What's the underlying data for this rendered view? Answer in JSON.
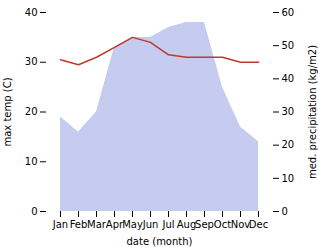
{
  "chart_data": {
    "type": "line",
    "xlabel": "date (month)",
    "ylabel": "max temp (C)",
    "y2label": "med. precipitation (kg/m2)",
    "categories": [
      "Jan",
      "Feb",
      "Mar",
      "Apr",
      "May",
      "Jun",
      "Jul",
      "Aug",
      "Sep",
      "Oct",
      "Nov",
      "Dec"
    ],
    "series": [
      {
        "type": "area",
        "color": "#c5ccf0",
        "values": [
          19,
          16,
          20,
          33,
          35,
          35,
          37,
          38,
          38,
          25,
          17,
          14
        ]
      },
      {
        "type": "line",
        "color": "#c0392b",
        "values": [
          30.5,
          29.5,
          31.0,
          33.0,
          35.0,
          34.0,
          31.5,
          31.0,
          31.0,
          31.0,
          30.0,
          30.0
        ]
      }
    ],
    "ylim": [
      0,
      40
    ],
    "yticks": [
      0,
      10,
      20,
      30,
      40
    ],
    "y2lim": [
      0,
      60
    ],
    "y2ticks": [
      0,
      10,
      20,
      30,
      40,
      50,
      60
    ]
  }
}
